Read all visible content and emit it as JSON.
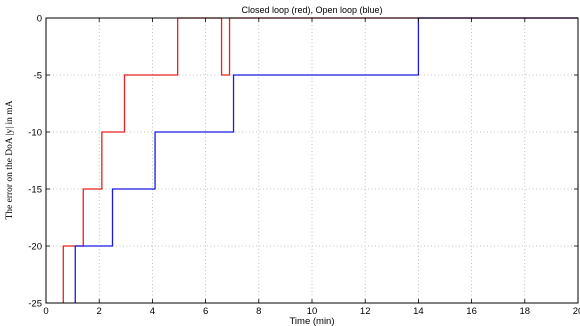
{
  "chart_data": {
    "type": "line",
    "title": "Closed loop (red), Open loop (blue)",
    "xlabel": "Time (min)",
    "ylabel": "The error on the DoA |y| in mA",
    "xlim": [
      0,
      20
    ],
    "ylim": [
      -25,
      0
    ],
    "xticks": [
      "0",
      "2",
      "4",
      "6",
      "8",
      "10",
      "12",
      "14",
      "16",
      "18",
      "20"
    ],
    "yticks": [
      "0",
      "-5",
      "-10",
      "-15",
      "-20",
      "-25"
    ],
    "xtick_values": [
      0,
      2,
      4,
      6,
      8,
      10,
      12,
      14,
      16,
      18,
      20
    ],
    "ytick_values": [
      0,
      -5,
      -10,
      -15,
      -20,
      -25
    ],
    "grid": true,
    "series": [
      {
        "color": "#e8211e",
        "line_style": "step",
        "points": [
          [
            0.65,
            -25
          ],
          [
            0.65,
            -20
          ],
          [
            1.4,
            -20
          ],
          [
            1.4,
            -15
          ],
          [
            2.1,
            -15
          ],
          [
            2.1,
            -10
          ],
          [
            2.95,
            -10
          ],
          [
            2.95,
            -5
          ],
          [
            4.95,
            -5
          ],
          [
            4.95,
            0
          ],
          [
            6.6,
            0
          ],
          [
            6.6,
            -5
          ],
          [
            6.9,
            -5
          ],
          [
            6.9,
            0
          ],
          [
            20,
            0
          ]
        ]
      },
      {
        "color": "#1a1ae0",
        "line_style": "step",
        "points": [
          [
            1.1,
            -25
          ],
          [
            1.1,
            -20
          ],
          [
            2.5,
            -20
          ],
          [
            2.5,
            -15
          ],
          [
            4.1,
            -15
          ],
          [
            4.1,
            -10
          ],
          [
            7.05,
            -10
          ],
          [
            7.05,
            -5
          ],
          [
            14.0,
            -5
          ],
          [
            14.0,
            0
          ],
          [
            20,
            0
          ]
        ]
      }
    ]
  }
}
